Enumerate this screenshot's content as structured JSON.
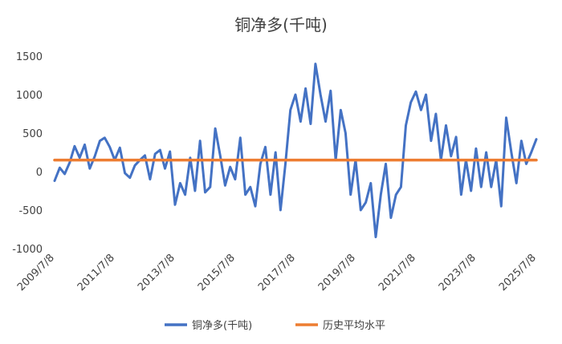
{
  "chart_data": {
    "type": "line",
    "title": "铜净多(千吨)",
    "xlabel": "",
    "ylabel": "",
    "ylim": [
      -1000,
      1500
    ],
    "yticks": [
      1500,
      1000,
      500,
      0,
      -500,
      -1000
    ],
    "ytick_labels": [
      "1500",
      "1000",
      "500",
      "0",
      "-500",
      "-1000"
    ],
    "xlim": [
      "2009/7/8",
      "2025/7/8"
    ],
    "xticks": [
      "2009/7/8",
      "2011/7/8",
      "2013/7/8",
      "2015/7/8",
      "2017/7/8",
      "2019/7/8",
      "2021/7/8",
      "2023/7/8",
      "2025/7/8"
    ],
    "grid": false,
    "legend": "bottom",
    "series": [
      {
        "name": "铜净多(千吨)",
        "color": "#4472C4",
        "points": [
          [
            "2009/7/8",
            -120
          ],
          [
            "2009/9/8",
            50
          ],
          [
            "2009/11/8",
            -30
          ],
          [
            "2010/1/8",
            120
          ],
          [
            "2010/3/8",
            330
          ],
          [
            "2010/5/8",
            180
          ],
          [
            "2010/7/8",
            350
          ],
          [
            "2010/9/8",
            40
          ],
          [
            "2010/11/8",
            200
          ],
          [
            "2011/1/8",
            400
          ],
          [
            "2011/3/8",
            440
          ],
          [
            "2011/5/8",
            320
          ],
          [
            "2011/7/8",
            150
          ],
          [
            "2011/9/8",
            310
          ],
          [
            "2011/11/8",
            -20
          ],
          [
            "2012/1/8",
            -80
          ],
          [
            "2012/3/8",
            80
          ],
          [
            "2012/5/8",
            150
          ],
          [
            "2012/7/8",
            210
          ],
          [
            "2012/9/8",
            -100
          ],
          [
            "2012/11/8",
            230
          ],
          [
            "2013/1/8",
            280
          ],
          [
            "2013/3/8",
            40
          ],
          [
            "2013/5/8",
            260
          ],
          [
            "2013/7/8",
            -430
          ],
          [
            "2013/9/8",
            -150
          ],
          [
            "2013/11/8",
            -300
          ],
          [
            "2014/1/8",
            180
          ],
          [
            "2014/3/8",
            -250
          ],
          [
            "2014/5/8",
            400
          ],
          [
            "2014/7/8",
            -270
          ],
          [
            "2014/9/8",
            -200
          ],
          [
            "2014/11/8",
            560
          ],
          [
            "2015/1/8",
            200
          ],
          [
            "2015/3/8",
            -180
          ],
          [
            "2015/5/8",
            60
          ],
          [
            "2015/7/8",
            -100
          ],
          [
            "2015/9/8",
            440
          ],
          [
            "2015/11/8",
            -300
          ],
          [
            "2016/1/8",
            -200
          ],
          [
            "2016/3/8",
            -450
          ],
          [
            "2016/5/8",
            100
          ],
          [
            "2016/7/8",
            320
          ],
          [
            "2016/9/8",
            -300
          ],
          [
            "2016/11/8",
            250
          ],
          [
            "2017/1/8",
            -500
          ],
          [
            "2017/3/8",
            100
          ],
          [
            "2017/5/8",
            800
          ],
          [
            "2017/7/8",
            1000
          ],
          [
            "2017/9/8",
            650
          ],
          [
            "2017/11/8",
            1080
          ],
          [
            "2018/1/8",
            620
          ],
          [
            "2018/3/8",
            1400
          ],
          [
            "2018/5/8",
            1000
          ],
          [
            "2018/7/8",
            650
          ],
          [
            "2018/9/8",
            1050
          ],
          [
            "2018/11/8",
            150
          ],
          [
            "2019/1/8",
            800
          ],
          [
            "2019/3/8",
            500
          ],
          [
            "2019/5/8",
            -300
          ],
          [
            "2019/7/8",
            150
          ],
          [
            "2019/9/8",
            -500
          ],
          [
            "2019/11/8",
            -400
          ],
          [
            "2020/1/8",
            -150
          ],
          [
            "2020/3/8",
            -850
          ],
          [
            "2020/5/8",
            -300
          ],
          [
            "2020/7/8",
            100
          ],
          [
            "2020/9/8",
            -600
          ],
          [
            "2020/11/8",
            -300
          ],
          [
            "2021/1/8",
            -200
          ],
          [
            "2021/3/8",
            600
          ],
          [
            "2021/5/8",
            900
          ],
          [
            "2021/7/8",
            1040
          ],
          [
            "2021/9/8",
            800
          ],
          [
            "2021/11/8",
            1000
          ],
          [
            "2022/1/8",
            400
          ],
          [
            "2022/3/8",
            750
          ],
          [
            "2022/5/8",
            150
          ],
          [
            "2022/7/8",
            600
          ],
          [
            "2022/9/8",
            200
          ],
          [
            "2022/11/8",
            450
          ],
          [
            "2023/1/8",
            -300
          ],
          [
            "2023/3/8",
            150
          ],
          [
            "2023/5/8",
            -250
          ],
          [
            "2023/7/8",
            300
          ],
          [
            "2023/9/8",
            -200
          ],
          [
            "2023/11/8",
            250
          ],
          [
            "2024/1/8",
            -200
          ],
          [
            "2024/3/8",
            150
          ],
          [
            "2024/5/8",
            -450
          ],
          [
            "2024/7/8",
            700
          ],
          [
            "2024/9/8",
            250
          ],
          [
            "2024/11/8",
            -150
          ],
          [
            "2025/1/8",
            400
          ],
          [
            "2025/3/8",
            100
          ],
          [
            "2025/5/8",
            250
          ],
          [
            "2025/7/8",
            420
          ]
        ]
      },
      {
        "name": "历史平均水平",
        "color": "#ED7D31",
        "points": [
          [
            "2009/7/8",
            150
          ],
          [
            "2025/7/8",
            150
          ]
        ]
      }
    ]
  }
}
